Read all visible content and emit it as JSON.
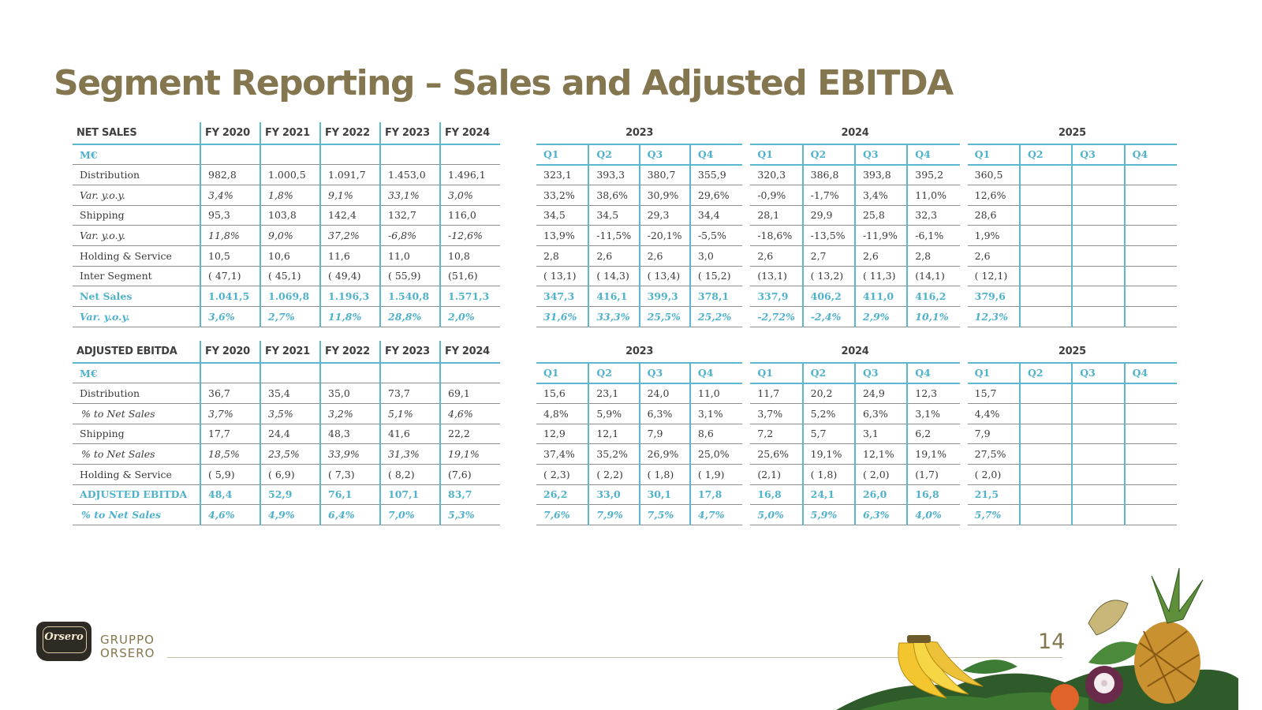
{
  "title": "Segment Reporting – Sales and Adjusted EBITDA",
  "page_number": "14",
  "logo": {
    "script": "Orsero",
    "line1": "GRUPPO",
    "line2": "ORSERO"
  },
  "colors": {
    "title": "#847750",
    "accent": "#4fb2cc",
    "divider": "#5cb8cf"
  },
  "sales": {
    "annual": {
      "headers": [
        "NET SALES",
        "FY 2020",
        "FY 2021",
        "FY 2022",
        "FY 2023",
        "FY 2024"
      ],
      "rows": [
        [
          "M€",
          "",
          "",
          "",
          "",
          ""
        ],
        [
          "Distribution",
          "982,8",
          "1.000,5",
          "1.091,7",
          "1.453,0",
          "1.496,1"
        ],
        [
          "Var. y.o.y.",
          "3,4%",
          "1,8%",
          "9,1%",
          "33,1%",
          "3,0%"
        ],
        [
          "Shipping",
          "95,3",
          "103,8",
          "142,4",
          "132,7",
          "116,0"
        ],
        [
          "Var. y.o.y.",
          "11,8%",
          "9,0%",
          "37,2%",
          "-6,8%",
          "-12,6%"
        ],
        [
          "Holding & Service",
          "10,5",
          "10,6",
          "11,6",
          "11,0",
          "10,8"
        ],
        [
          "Inter Segment",
          "( 47,1)",
          "( 45,1)",
          "( 49,4)",
          "( 55,9)",
          "(51,6)"
        ],
        [
          "Net Sales",
          "1.041,5",
          "1.069,8",
          "1.196,3",
          "1.540,8",
          "1.571,3"
        ],
        [
          "Var. y.o.y.",
          "3,6%",
          "2,7%",
          "11,8%",
          "28,8%",
          "2,0%"
        ]
      ]
    },
    "quarterly": {
      "years": [
        "2023",
        "2024",
        "2025"
      ],
      "quarters": [
        "Q1",
        "Q2",
        "Q3",
        "Q4",
        "Q1",
        "Q2",
        "Q3",
        "Q4",
        "Q1",
        "Q2",
        "Q3",
        "Q4"
      ],
      "rows": [
        [
          "323,1",
          "393,3",
          "380,7",
          "355,9",
          "320,3",
          "386,8",
          "393,8",
          "395,2",
          "360,5",
          "",
          "",
          ""
        ],
        [
          "33,2%",
          "38,6%",
          "30,9%",
          "29,6%",
          "-0,9%",
          "-1,7%",
          "3,4%",
          "11,0%",
          "12,6%",
          "",
          "",
          ""
        ],
        [
          "34,5",
          "34,5",
          "29,3",
          "34,4",
          "28,1",
          "29,9",
          "25,8",
          "32,3",
          "28,6",
          "",
          "",
          ""
        ],
        [
          "13,9%",
          "-11,5%",
          "-20,1%",
          "-5,5%",
          "-18,6%",
          "-13,5%",
          "-11,9%",
          "-6,1%",
          "1,9%",
          "",
          "",
          ""
        ],
        [
          "2,8",
          "2,6",
          "2,6",
          "3,0",
          "2,6",
          "2,7",
          "2,6",
          "2,8",
          "2,6",
          "",
          "",
          ""
        ],
        [
          "( 13,1)",
          "( 14,3)",
          "( 13,4)",
          "( 15,2)",
          "(13,1)",
          "( 13,2)",
          "( 11,3)",
          "(14,1)",
          "( 12,1)",
          "",
          "",
          ""
        ],
        [
          "347,3",
          "416,1",
          "399,3",
          "378,1",
          "337,9",
          "406,2",
          "411,0",
          "416,2",
          "379,6",
          "",
          "",
          ""
        ],
        [
          "31,6%",
          "33,3%",
          "25,5%",
          "25,2%",
          "-2,72%",
          "-2,4%",
          "2,9%",
          "10,1%",
          "12,3%",
          "",
          "",
          ""
        ]
      ]
    }
  },
  "ebitda": {
    "annual": {
      "headers": [
        "ADJUSTED EBITDA",
        "FY 2020",
        "FY 2021",
        "FY 2022",
        "FY 2023",
        "FY 2024"
      ],
      "rows": [
        [
          "M€",
          "",
          "",
          "",
          "",
          ""
        ],
        [
          "Distribution",
          "36,7",
          "35,4",
          "35,0",
          "73,7",
          "69,1"
        ],
        [
          "% to Net Sales",
          "3,7%",
          "3,5%",
          "3,2%",
          "5,1%",
          "4,6%"
        ],
        [
          "Shipping",
          "17,7",
          "24,4",
          "48,3",
          "41,6",
          "22,2"
        ],
        [
          "% to Net Sales",
          "18,5%",
          "23,5%",
          "33,9%",
          "31,3%",
          "19,1%"
        ],
        [
          "Holding & Service",
          "( 5,9)",
          "( 6,9)",
          "( 7,3)",
          "( 8,2)",
          "(7,6)"
        ],
        [
          "ADJUSTED EBITDA",
          "48,4",
          "52,9",
          "76,1",
          "107,1",
          "83,7"
        ],
        [
          "% to Net Sales",
          "4,6%",
          "4,9%",
          "6,4%",
          "7,0%",
          "5,3%"
        ]
      ]
    },
    "quarterly": {
      "years": [
        "2023",
        "2024",
        "2025"
      ],
      "quarters": [
        "Q1",
        "Q2",
        "Q3",
        "Q4",
        "Q1",
        "Q2",
        "Q3",
        "Q4",
        "Q1",
        "Q2",
        "Q3",
        "Q4"
      ],
      "rows": [
        [
          "15,6",
          "23,1",
          "24,0",
          "11,0",
          "11,7",
          "20,2",
          "24,9",
          "12,3",
          "15,7",
          "",
          "",
          ""
        ],
        [
          "4,8%",
          "5,9%",
          "6,3%",
          "3,1%",
          "3,7%",
          "5,2%",
          "6,3%",
          "3,1%",
          "4,4%",
          "",
          "",
          ""
        ],
        [
          "12,9",
          "12,1",
          "7,9",
          "8,6",
          "7,2",
          "5,7",
          "3,1",
          "6,2",
          "7,9",
          "",
          "",
          ""
        ],
        [
          "37,4%",
          "35,2%",
          "26,9%",
          "25,0%",
          "25,6%",
          "19,1%",
          "12,1%",
          "19,1%",
          "27,5%",
          "",
          "",
          ""
        ],
        [
          "( 2,3)",
          "( 2,2)",
          "( 1,8)",
          "( 1,9)",
          "(2,1)",
          "( 1,8)",
          "( 2,0)",
          "(1,7)",
          "( 2,0)",
          "",
          "",
          ""
        ],
        [
          "26,2",
          "33,0",
          "30,1",
          "17,8",
          "16,8",
          "24,1",
          "26,0",
          "16,8",
          "21,5",
          "",
          "",
          ""
        ],
        [
          "7,6%",
          "7,9%",
          "7,5%",
          "4,7%",
          "5,0%",
          "5,9%",
          "6,3%",
          "4,0%",
          "5,7%",
          "",
          "",
          ""
        ]
      ]
    }
  }
}
